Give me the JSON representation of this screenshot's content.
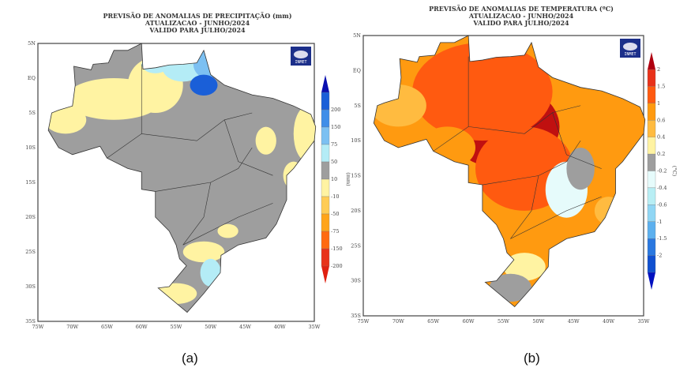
{
  "figure_a": {
    "caption": "(a)",
    "title_lines": [
      "PREVISÃO DE ANOMALIAS DE PRECIPITAÇÃO (mm)",
      "ATUALIZACAO - JUNHO/2024",
      "VALIDO PARA JULHO/2024"
    ],
    "logo_text": "INMET",
    "unit": "(mm)",
    "colorbar_labels": [
      "200",
      "150",
      "75",
      "50",
      "10",
      "-10",
      "-50",
      "-75",
      "-150",
      "-200"
    ],
    "colorbar_colors": [
      "#1a5fd8",
      "#3f8ee8",
      "#7cc0f2",
      "#b4ecf6",
      "#9e9e9e",
      "#fff3a2",
      "#ffcc55",
      "#ffa41a",
      "#ff6a10",
      "#e8321a"
    ],
    "arrow_colors": [
      "#0a10b0",
      "#e02010"
    ]
  },
  "figure_b": {
    "caption": "(b)",
    "title_lines": [
      "PREVISÃO DE ANOMALIAS DE TEMPERATURA (ºC)",
      "ATUALIZACAO - JUNHO/2024",
      "VALIDO PARA JULHO/2024"
    ],
    "logo_text": "INMET",
    "unit": "(°C)",
    "colorbar_labels": [
      "2",
      "1.5",
      "1",
      "0.6",
      "0.4",
      "0.2",
      "-0.2",
      "-0.4",
      "-0.6",
      "-1",
      "-1.5",
      "-2"
    ],
    "colorbar_colors": [
      "#e8321a",
      "#ff5a10",
      "#ff9a10",
      "#ffbb40",
      "#fff3a2",
      "#9e9e9e",
      "#e6fbfb",
      "#b8eef4",
      "#90d6f4",
      "#5cb0ee",
      "#2a78e0",
      "#1050d0"
    ],
    "arrow_colors": [
      "#b00010",
      "#0010c0"
    ]
  },
  "axes": {
    "lat_labels": [
      "5N",
      "EQ",
      "5S",
      "10S",
      "15S",
      "20S",
      "25S",
      "30S",
      "35S"
    ],
    "lon_labels": [
      "75W",
      "70W",
      "65W",
      "60W",
      "55W",
      "50W",
      "45W",
      "40W",
      "35W"
    ]
  }
}
